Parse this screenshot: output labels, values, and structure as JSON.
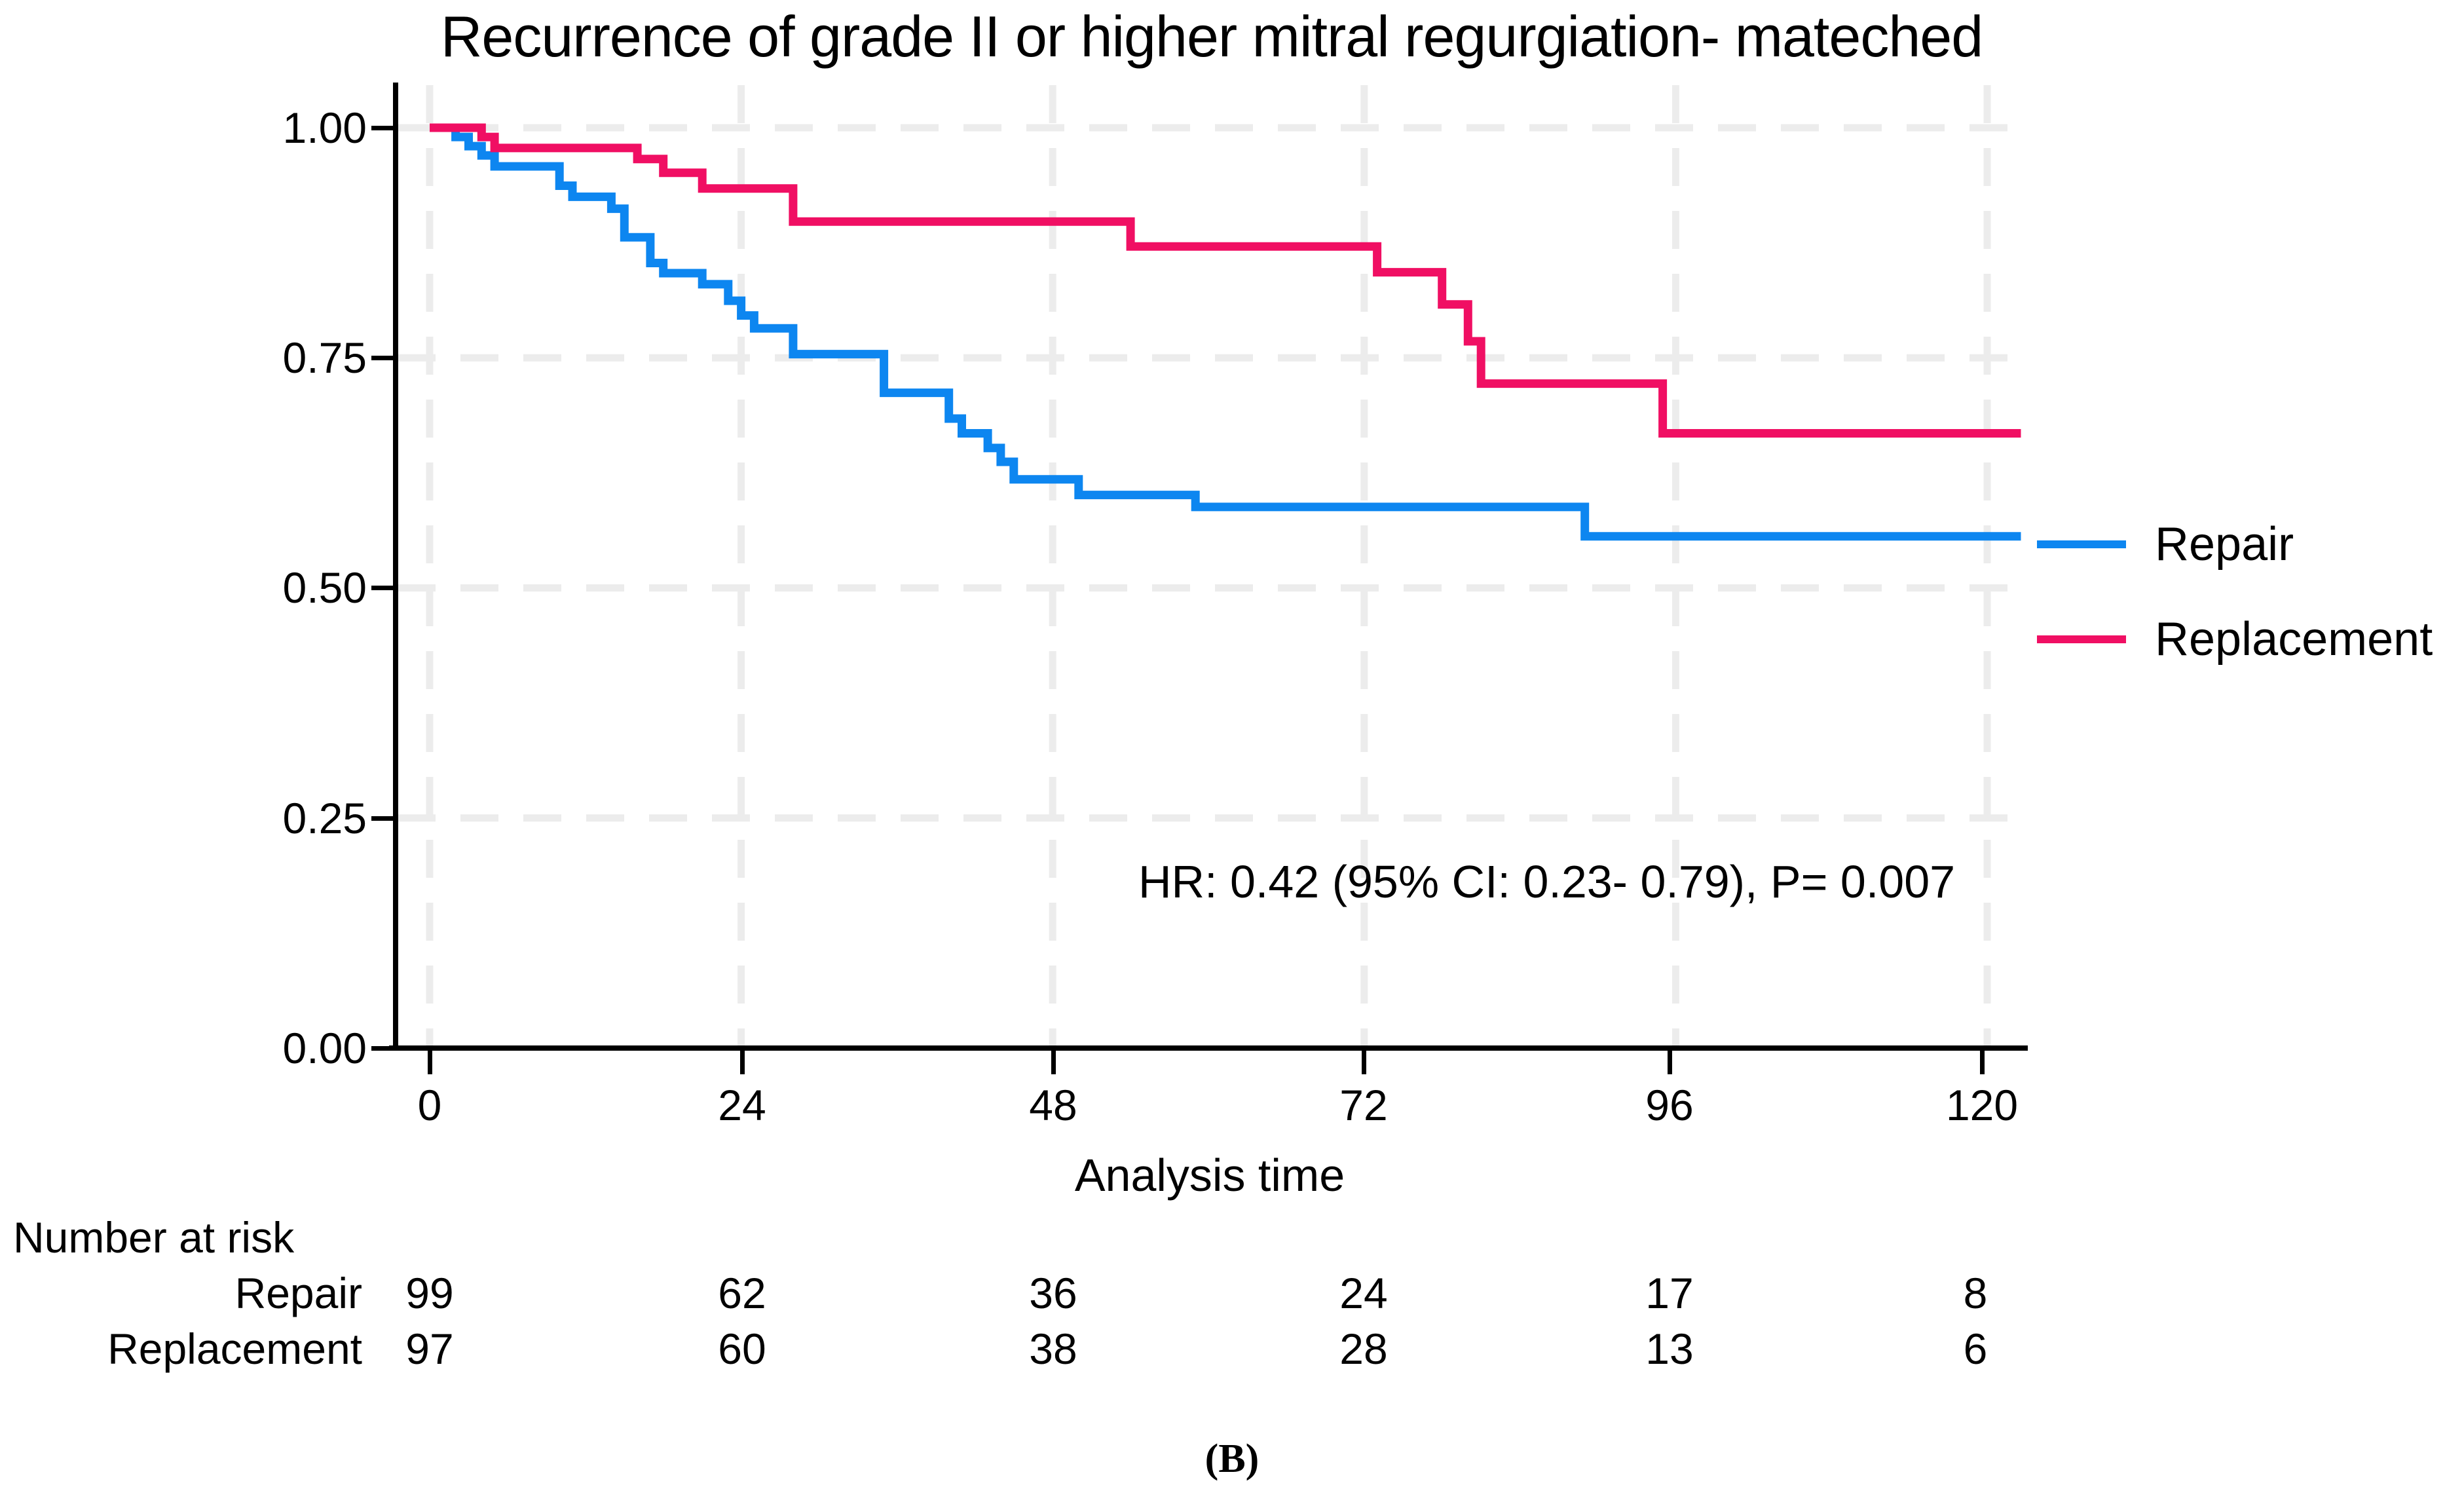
{
  "caption": "(B)",
  "chart_data": {
    "type": "line",
    "subtype": "kaplan-meier-step-curves",
    "title": "Recurrence of grade II or higher mitral regurgiation- mateched",
    "xlabel": "Analysis time",
    "ylabel": "",
    "xlim": [
      0,
      126
    ],
    "ylim": [
      0,
      1
    ],
    "x_ticks": [
      0,
      24,
      48,
      72,
      96,
      120
    ],
    "x_tick_labels": [
      "0",
      "24",
      "48",
      "72",
      "96",
      "120"
    ],
    "y_ticks": [
      1.0,
      0.75,
      0.5,
      0.25,
      0.0
    ],
    "y_tick_labels": [
      "1.00",
      "0.75",
      "0.50",
      "0.25",
      "0.00"
    ],
    "x_gridlines": [
      0,
      24,
      48,
      72,
      96,
      120
    ],
    "y_gridlines": [
      1.0,
      0.75,
      0.5,
      0.25
    ],
    "grid": "dashed-light-gray",
    "legend_position": "right-outside",
    "t_end": 122.6,
    "annotation": "HR: 0.42 (95% CI: 0.23- 0.79), P= 0.007",
    "series": [
      {
        "name": "Repair",
        "color": "#0d86f0",
        "steps": [
          [
            0,
            1.0
          ],
          [
            2,
            0.99
          ],
          [
            3,
            0.98
          ],
          [
            4,
            0.97
          ],
          [
            5,
            0.958
          ],
          [
            10,
            0.937
          ],
          [
            11,
            0.925
          ],
          [
            14,
            0.912
          ],
          [
            15,
            0.881
          ],
          [
            17,
            0.853
          ],
          [
            18,
            0.842
          ],
          [
            21,
            0.83
          ],
          [
            23,
            0.812
          ],
          [
            24,
            0.796
          ],
          [
            25,
            0.782
          ],
          [
            28,
            0.754
          ],
          [
            35,
            0.712
          ],
          [
            40,
            0.684
          ],
          [
            41,
            0.668
          ],
          [
            43,
            0.652
          ],
          [
            44,
            0.637
          ],
          [
            45,
            0.618
          ],
          [
            50,
            0.601
          ],
          [
            59,
            0.588
          ],
          [
            89,
            0.556
          ]
        ]
      },
      {
        "name": "Replacement",
        "color": "#f00f63",
        "steps": [
          [
            0,
            1.0
          ],
          [
            4,
            0.99
          ],
          [
            5,
            0.978
          ],
          [
            16,
            0.966
          ],
          [
            18,
            0.951
          ],
          [
            21,
            0.934
          ],
          [
            28,
            0.898
          ],
          [
            54,
            0.871
          ],
          [
            73,
            0.843
          ],
          [
            78,
            0.808
          ],
          [
            80,
            0.768
          ],
          [
            81,
            0.722
          ],
          [
            95,
            0.668
          ]
        ]
      }
    ],
    "risk_table": {
      "header": "Number at risk",
      "time_points": [
        0,
        24,
        48,
        72,
        96,
        120
      ],
      "rows": [
        {
          "label": "Repair",
          "values": [
            "99",
            "62",
            "36",
            "24",
            "17",
            "8"
          ]
        },
        {
          "label": "Replacement",
          "values": [
            "97",
            "60",
            "38",
            "28",
            "13",
            "6"
          ]
        }
      ]
    },
    "colors": {
      "repair": "#0d86f0",
      "replacement": "#f00f63",
      "gridline": "#ececec",
      "axis": "#000000",
      "background": "#ffffff"
    }
  }
}
